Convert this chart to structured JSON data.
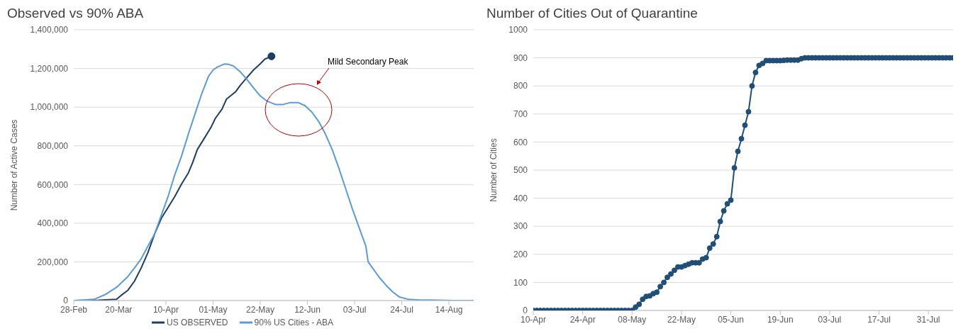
{
  "chart_data": [
    {
      "type": "line",
      "title": "Observed vs 90% ABA",
      "ylabel": "Number of Active Cases",
      "xlim": [
        "--02-28",
        "--08-25"
      ],
      "xticks": [
        {
          "value": "--02-28",
          "label": "28-Feb"
        },
        {
          "value": "--03-20",
          "label": "20-Mar"
        },
        {
          "value": "--04-10",
          "label": "10-Apr"
        },
        {
          "value": "--05-01",
          "label": "01-May"
        },
        {
          "value": "--05-22",
          "label": "22-May"
        },
        {
          "value": "--06-12",
          "label": "12-Jun"
        },
        {
          "value": "--07-03",
          "label": "03-Jul"
        },
        {
          "value": "--07-24",
          "label": "24-Jul"
        },
        {
          "value": "--08-14",
          "label": "14-Aug"
        }
      ],
      "ylim": [
        0,
        1400000
      ],
      "yticks": [
        0,
        {
          "value": 200000,
          "label": "200,000"
        },
        {
          "value": 400000,
          "label": "400,000"
        },
        {
          "value": 600000,
          "label": "600,000"
        },
        {
          "value": 800000,
          "label": "800,000"
        },
        {
          "value": 1000000,
          "label": "1,000,000"
        },
        {
          "value": 1200000,
          "label": "1,200,000"
        },
        {
          "value": 1400000,
          "label": "1,400,000"
        }
      ],
      "grid": "y",
      "legend": "bottom",
      "line_style": "solid",
      "annotations": [
        "Mild Secondary Peak"
      ],
      "series": [
        {
          "name": "US OBSERVED",
          "color": "#1f3d63",
          "x": [
            "--02-28",
            "--03-11",
            "--03-19",
            "--03-21",
            "--03-24",
            "--03-27",
            "--03-30",
            "--04-02",
            "--04-05",
            "--04-08",
            "--04-11",
            "--04-14",
            "--04-17",
            "--04-20",
            "--04-22",
            "--04-24",
            "--04-27",
            "--04-30",
            "--05-02",
            "--05-05",
            "--05-07",
            "--05-11",
            "--05-13",
            "--05-16",
            "--05-19",
            "--05-22",
            "--05-24",
            "--05-27"
          ],
          "values": [
            0,
            2000,
            6000,
            26000,
            52000,
            100000,
            168000,
            248000,
            345000,
            426000,
            482000,
            539000,
            603000,
            660000,
            716000,
            781000,
            837000,
            894000,
            942000,
            990000,
            1042000,
            1079000,
            1111000,
            1152000,
            1192000,
            1224000,
            1248000,
            1263000
          ]
        },
        {
          "name": "90% US Cities - ABA",
          "color": "#5b9bd5",
          "x": [
            "--02-28",
            "--03-09",
            "--03-14",
            "--03-19",
            "--03-24",
            "--03-27",
            "--03-30",
            "--04-02",
            "--04-05",
            "--04-08",
            "--04-11",
            "--04-14",
            "--04-17",
            "--04-20",
            "--04-23",
            "--04-26",
            "--04-29",
            "--05-01",
            "--05-03",
            "--05-06",
            "--05-08",
            "--05-10",
            "--05-13",
            "--05-16",
            "--05-19",
            "--05-22",
            "--05-25",
            "--05-29",
            "--06-01",
            "--06-04",
            "--06-08",
            "--06-11",
            "--06-14",
            "--06-17",
            "--06-20",
            "--06-23",
            "--06-26",
            "--06-29",
            "--07-02",
            "--07-05",
            "--07-08",
            "--07-09",
            "--07-11",
            "--07-14",
            "--07-17",
            "--07-20",
            "--07-23",
            "--07-27",
            "--08-01",
            "--08-06",
            "--08-16",
            "--08-25"
          ],
          "values": [
            0,
            6000,
            31000,
            68000,
            123000,
            168000,
            216000,
            281000,
            345000,
            442000,
            539000,
            652000,
            748000,
            861000,
            966000,
            1071000,
            1160000,
            1192000,
            1208000,
            1223000,
            1221000,
            1213000,
            1184000,
            1144000,
            1100000,
            1058000,
            1031000,
            1013000,
            1013000,
            1023000,
            1023000,
            1007000,
            974000,
            926000,
            861000,
            781000,
            684000,
            579000,
            474000,
            377000,
            281000,
            200000,
            168000,
            119000,
            79000,
            44000,
            18000,
            6000,
            3000,
            3000,
            0,
            0
          ]
        },
        {
          "type": "scatter",
          "color": "#1f3d63",
          "marker": "circle",
          "x": [
            "--05-27"
          ],
          "values": [
            1263000
          ]
        }
      ]
    },
    {
      "type": "line",
      "title": "Number of Cities Out of Quarantine",
      "ylabel": "Number of Cities",
      "xlim": [
        "--04-10",
        "--08-07"
      ],
      "xticks": [
        {
          "value": "--04-10",
          "label": "10-Apr"
        },
        {
          "value": "--04-24",
          "label": "24-Apr"
        },
        {
          "value": "--05-08",
          "label": "08-May"
        },
        {
          "value": "--05-22",
          "label": "22-May"
        },
        {
          "value": "--06-05",
          "label": "05-Jun"
        },
        {
          "value": "--06-19",
          "label": "19-Jun"
        },
        {
          "value": "--07-03",
          "label": "03-Jul"
        },
        {
          "value": "--07-17",
          "label": "17-Jul"
        },
        {
          "value": "--07-31",
          "label": "31-Jul"
        }
      ],
      "ylim": [
        0,
        1000
      ],
      "yticks": [
        0,
        100,
        200,
        300,
        400,
        500,
        600,
        700,
        800,
        900,
        1000
      ],
      "grid": "y",
      "marker": "circle",
      "line_style": "solid",
      "x": [
        "--04-10",
        "--04-11",
        "--04-12",
        "--04-13",
        "--04-14",
        "--04-15",
        "--04-16",
        "--04-17",
        "--04-18",
        "--04-19",
        "--04-20",
        "--04-21",
        "--04-22",
        "--04-23",
        "--04-24",
        "--04-25",
        "--04-26",
        "--04-27",
        "--04-28",
        "--04-29",
        "--04-30",
        "--05-01",
        "--05-02",
        "--05-03",
        "--05-04",
        "--05-05",
        "--05-06",
        "--05-07",
        "--05-08",
        "--05-09",
        "--05-10",
        "--05-11",
        "--05-12",
        "--05-13",
        "--05-14",
        "--05-15",
        "--05-16",
        "--05-17",
        "--05-18",
        "--05-19",
        "--05-20",
        "--05-21",
        "--05-22",
        "--05-23",
        "--05-24",
        "--05-25",
        "--05-26",
        "--05-27",
        "--05-28",
        "--05-29",
        "--05-30",
        "--05-31",
        "--06-01",
        "--06-02",
        "--06-03",
        "--06-04",
        "--06-05",
        "--06-06",
        "--06-07",
        "--06-08",
        "--06-09",
        "--06-10",
        "--06-11",
        "--06-12",
        "--06-13",
        "--06-14",
        "--06-15",
        "--06-16",
        "--06-17",
        "--06-18",
        "--06-19",
        "--06-20",
        "--06-21",
        "--06-22",
        "--06-23",
        "--06-24",
        "--06-25",
        "--06-26",
        "--06-27",
        "--06-28",
        "--06-29",
        "--06-30",
        "--07-01",
        "--07-02",
        "--07-03",
        "--07-04",
        "--07-05",
        "--07-06",
        "--07-07",
        "--07-08",
        "--07-09",
        "--07-10",
        "--07-11",
        "--07-12",
        "--07-13",
        "--07-14",
        "--07-15",
        "--07-16",
        "--07-17",
        "--07-18",
        "--07-19",
        "--07-20",
        "--07-21",
        "--07-22",
        "--07-23",
        "--07-24",
        "--07-25",
        "--07-26",
        "--07-27",
        "--07-28",
        "--07-29",
        "--07-30",
        "--07-31",
        "--08-01",
        "--08-02",
        "--08-03",
        "--08-04",
        "--08-05",
        "--08-06",
        "--08-07"
      ],
      "series": [
        {
          "color": "#1f4e79",
          "values": [
            0,
            0,
            0,
            0,
            0,
            0,
            0,
            0,
            0,
            0,
            0,
            0,
            0,
            0,
            0,
            0,
            0,
            0,
            0,
            0,
            0,
            0,
            0,
            0,
            0,
            0,
            0,
            0,
            0,
            12,
            22,
            40,
            50,
            52,
            60,
            65,
            85,
            100,
            118,
            130,
            143,
            155,
            155,
            160,
            165,
            170,
            170,
            170,
            183,
            188,
            222,
            237,
            263,
            317,
            355,
            380,
            393,
            508,
            567,
            612,
            660,
            708,
            800,
            848,
            873,
            880,
            890,
            890,
            890,
            890,
            890,
            891,
            892,
            892,
            892,
            892,
            897,
            900,
            900,
            900,
            900,
            900,
            900,
            900,
            900,
            900,
            900,
            900,
            900,
            900,
            900,
            900,
            900,
            900,
            900,
            900,
            900,
            900,
            900,
            900,
            900,
            900,
            900,
            900,
            900,
            900,
            900,
            900,
            900,
            900,
            900,
            900,
            900,
            900,
            900,
            900,
            900,
            900,
            900,
            900
          ]
        }
      ]
    }
  ]
}
